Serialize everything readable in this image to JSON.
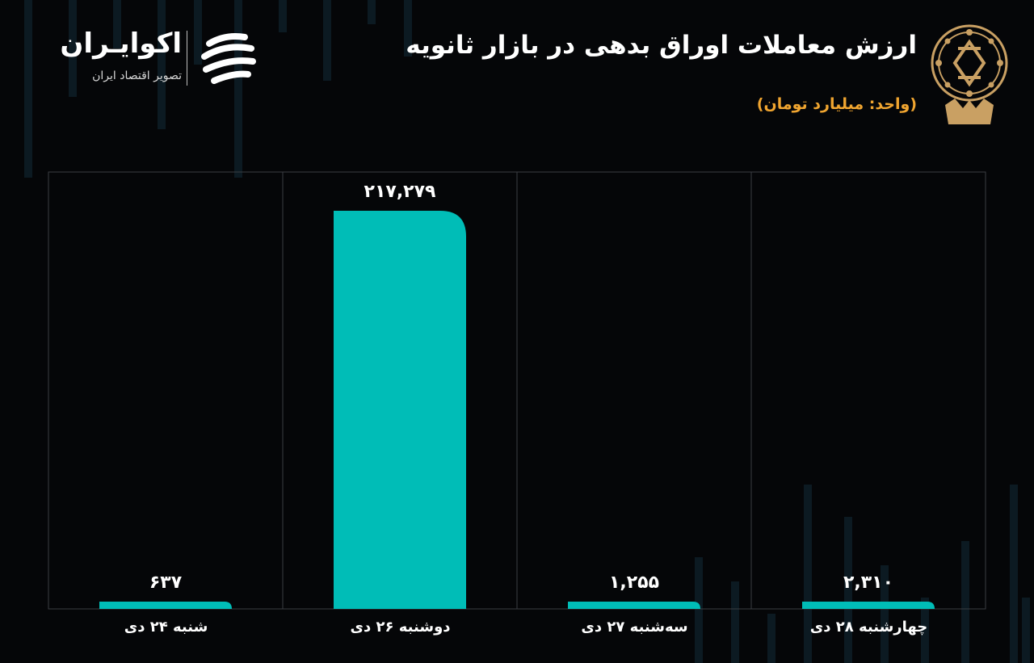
{
  "header": {
    "title": "ارزش معاملات اوراق بدهی در بازار ثانویه",
    "unit": "(واحد: میلیارد تومان)"
  },
  "brand": {
    "name": "اکوایـران",
    "tagline": "تصویر اقتصاد ایران"
  },
  "colors": {
    "background": "#050608",
    "bar": "#00bdb7",
    "unit_text": "#f0a530",
    "logo_gold": "#c9a063"
  },
  "chart_data": {
    "type": "bar",
    "title": "ارزش معاملات اوراق بدهی در بازار ثانویه",
    "unit": "(واحد: میلیارد تومان)",
    "categories": [
      "شنبه ۲۴ دی",
      "دوشنبه ۲۶ دی",
      "سه‌شنبه ۲۷ دی",
      "چهارشنبه ۲۸ دی"
    ],
    "values": [
      637,
      217279,
      1255,
      2310
    ],
    "value_labels": [
      "۶۳۷",
      "۲۱۷,۲۷۹",
      "۱,۲۵۵",
      "۲,۳۱۰"
    ],
    "ylim": [
      0,
      240000
    ],
    "grid": "vertical-separators",
    "legend": "none"
  }
}
